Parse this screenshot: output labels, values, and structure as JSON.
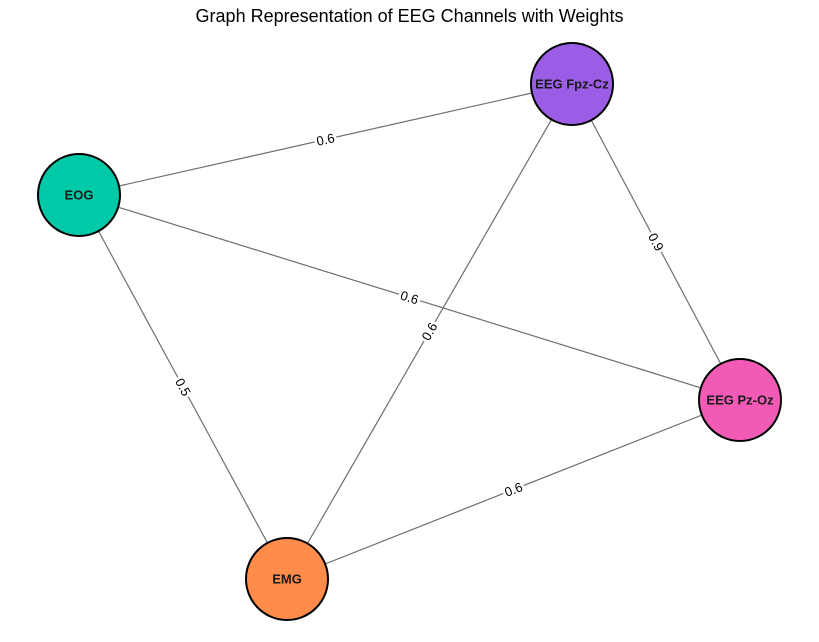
{
  "title": "Graph Representation of EEG Channels with Weights",
  "nodes": [
    {
      "id": "fpz",
      "label": "EEG Fpz-Cz",
      "color": "#9b5de5"
    },
    {
      "id": "eog",
      "label": "EOG",
      "color": "#00c9a7"
    },
    {
      "id": "pzoz",
      "label": "EEG Pz-Oz",
      "color": "#f15bb5"
    },
    {
      "id": "emg",
      "label": "EMG",
      "color": "#ff8c4a"
    }
  ],
  "edges": [
    {
      "id": "eog-fpz",
      "source": "eog",
      "target": "fpz",
      "weight": "0.6"
    },
    {
      "id": "fpz-pzoz",
      "source": "fpz",
      "target": "pzoz",
      "weight": "0.9"
    },
    {
      "id": "eog-pzoz",
      "source": "eog",
      "target": "pzoz",
      "weight": "0.6"
    },
    {
      "id": "fpz-emg",
      "source": "fpz",
      "target": "emg",
      "weight": "0.6"
    },
    {
      "id": "eog-emg",
      "source": "eog",
      "target": "emg",
      "weight": "0.5"
    },
    {
      "id": "emg-pzoz",
      "source": "emg",
      "target": "pzoz",
      "weight": "0.6"
    }
  ]
}
